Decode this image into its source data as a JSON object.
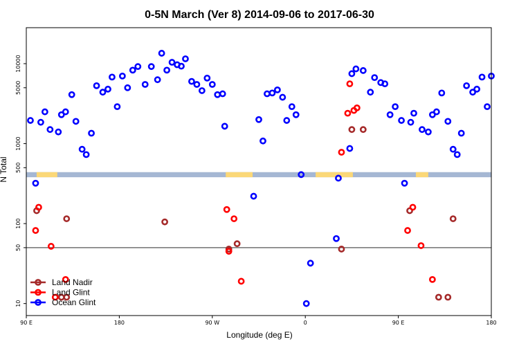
{
  "chart_data": {
    "type": "scatter",
    "title": "0-5N March (Ver 8)   2014-09-06 to 2017-06-30",
    "xlabel": "Longitude (deg E)",
    "ylabel": "N Total",
    "xlim": [
      0,
      450
    ],
    "ylim_log10": [
      0.85,
      4.45
    ],
    "x_ticks": [
      {
        "v": 0,
        "label": "90 E"
      },
      {
        "v": 90,
        "label": "180"
      },
      {
        "v": 180,
        "label": "90 W"
      },
      {
        "v": 270,
        "label": "0"
      },
      {
        "v": 360,
        "label": "90 E"
      },
      {
        "v": 450,
        "label": "180"
      }
    ],
    "y_ticks": [
      {
        "v": 10,
        "label": "10"
      },
      {
        "v": 50,
        "label": "50"
      },
      {
        "v": 100,
        "label": "100"
      },
      {
        "v": 500,
        "label": "500"
      },
      {
        "v": 1000,
        "label": "1000"
      },
      {
        "v": 5000,
        "label": "5000"
      },
      {
        "v": 10000,
        "label": "10000"
      }
    ],
    "reference_line": 50,
    "land_strip_range": [
      380,
      440
    ],
    "colors": {
      "ocean_strip": "#a5b7d3",
      "land_patch": "#fbd878",
      "land_nadir": "#a52a2a",
      "land_glint": "#ff0000",
      "ocean_glint": "#0000ff",
      "axis": "#000000"
    },
    "land_patch_ranges": [
      [
        10,
        30
      ],
      [
        193,
        219
      ],
      [
        280,
        316
      ],
      [
        377,
        389
      ]
    ],
    "series": [
      {
        "name": "Land Nadir",
        "color": "#a52a2a",
        "points": [
          [
            10,
            145
          ],
          [
            39,
            12
          ],
          [
            34,
            12
          ],
          [
            134,
            105
          ],
          [
            196,
            48
          ],
          [
            204,
            56
          ],
          [
            305,
            48
          ],
          [
            315,
            1500
          ],
          [
            326,
            1500
          ],
          [
            371,
            145
          ],
          [
            399,
            12
          ],
          [
            408,
            12
          ],
          [
            413,
            115
          ],
          [
            39,
            115
          ]
        ]
      },
      {
        "name": "Land Glint",
        "color": "#ff0000",
        "points": [
          [
            9,
            82
          ],
          [
            12,
            160
          ],
          [
            24,
            52
          ],
          [
            28,
            12
          ],
          [
            38,
            20
          ],
          [
            194,
            150
          ],
          [
            196,
            45
          ],
          [
            201,
            115
          ],
          [
            208,
            19
          ],
          [
            305,
            780
          ],
          [
            311,
            2400
          ],
          [
            317,
            2600
          ],
          [
            320,
            2800
          ],
          [
            313,
            5600
          ],
          [
            369,
            82
          ],
          [
            374,
            160
          ],
          [
            382,
            53
          ],
          [
            393,
            20
          ]
        ]
      },
      {
        "name": "Ocean Glint",
        "color": "#0000ff",
        "points": [
          [
            4,
            1950
          ],
          [
            9,
            320
          ],
          [
            14,
            1850
          ],
          [
            18,
            2500
          ],
          [
            23,
            1500
          ],
          [
            31,
            1400
          ],
          [
            34,
            2300
          ],
          [
            38,
            2500
          ],
          [
            44,
            4100
          ],
          [
            48,
            1900
          ],
          [
            54,
            850
          ],
          [
            58,
            730
          ],
          [
            63,
            1350
          ],
          [
            68,
            5300
          ],
          [
            74,
            4400
          ],
          [
            79,
            4800
          ],
          [
            83,
            6800
          ],
          [
            88,
            2900
          ],
          [
            93,
            7000
          ],
          [
            98,
            5000
          ],
          [
            103,
            8300
          ],
          [
            108,
            9200
          ],
          [
            115,
            5500
          ],
          [
            121,
            9200
          ],
          [
            127,
            6300
          ],
          [
            131,
            13500
          ],
          [
            136,
            8300
          ],
          [
            141,
            10400
          ],
          [
            146,
            9700
          ],
          [
            150,
            9300
          ],
          [
            154,
            11500
          ],
          [
            160,
            6000
          ],
          [
            165,
            5500
          ],
          [
            170,
            4600
          ],
          [
            175,
            6600
          ],
          [
            180,
            5500
          ],
          [
            185,
            4100
          ],
          [
            190,
            4200
          ],
          [
            192,
            1650
          ],
          [
            220,
            220
          ],
          [
            225,
            2000
          ],
          [
            229,
            1080
          ],
          [
            233,
            4200
          ],
          [
            238,
            4300
          ],
          [
            243,
            4700
          ],
          [
            248,
            3800
          ],
          [
            252,
            1950
          ],
          [
            257,
            2900
          ],
          [
            261,
            2300
          ],
          [
            266,
            410
          ],
          [
            271,
            10
          ],
          [
            275,
            32
          ],
          [
            300,
            65
          ],
          [
            302,
            370
          ],
          [
            313,
            870
          ],
          [
            315,
            7500
          ],
          [
            319,
            8600
          ],
          [
            326,
            8200
          ],
          [
            333,
            4400
          ],
          [
            337,
            6700
          ],
          [
            343,
            5800
          ],
          [
            347,
            5600
          ],
          [
            352,
            2300
          ],
          [
            357,
            2900
          ],
          [
            363,
            1950
          ],
          [
            366,
            320
          ],
          [
            372,
            1850
          ],
          [
            375,
            2400
          ],
          [
            383,
            1500
          ],
          [
            389,
            1400
          ],
          [
            393,
            2300
          ],
          [
            397,
            2500
          ],
          [
            402,
            4300
          ],
          [
            408,
            1900
          ],
          [
            413,
            850
          ],
          [
            417,
            730
          ],
          [
            421,
            1350
          ],
          [
            426,
            5300
          ],
          [
            432,
            4400
          ],
          [
            436,
            4800
          ],
          [
            441,
            6800
          ],
          [
            446,
            2900
          ],
          [
            450,
            7000
          ]
        ]
      }
    ],
    "legend": {
      "placement": "bottom-left",
      "entries": [
        {
          "label": "Land Nadir",
          "color": "#a52a2a"
        },
        {
          "label": "Land Glint",
          "color": "#ff0000"
        },
        {
          "label": "Ocean Glint",
          "color": "#0000ff"
        }
      ]
    }
  }
}
